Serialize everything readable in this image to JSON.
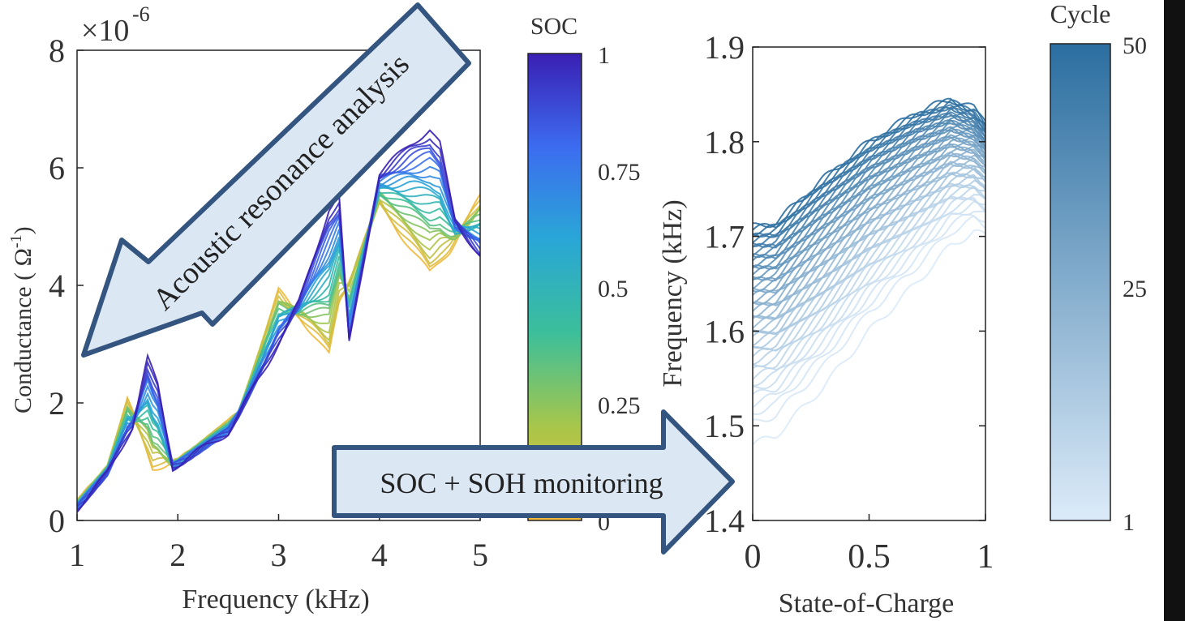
{
  "chart_data": [
    {
      "type": "line",
      "xlabel": "Frequency (kHz)",
      "ylabel": "Conductance ( Ω",
      "ylabel_sup": "-1",
      "ylabel_close": ")",
      "y_multiplier_base": "×10",
      "y_multiplier_exp": "-6",
      "xlim": [
        1,
        5
      ],
      "ylim": [
        0,
        8
      ],
      "xticks": [
        "1",
        "2",
        "3",
        "4",
        "5"
      ],
      "yticks": [
        "0",
        "2",
        "4",
        "6",
        "8"
      ],
      "grid": false,
      "series_description": "family of conductance spectra, one per SOC level (0 to 1)",
      "sample_series": {
        "soc_1": {
          "x": [
            1.0,
            1.3,
            1.55,
            1.7,
            1.8,
            1.95,
            2.5,
            2.9,
            3.2,
            3.5,
            3.6,
            3.7,
            4.0,
            4.3,
            4.5,
            4.6,
            4.75,
            5.0
          ],
          "y": [
            0.2,
            0.8,
            1.6,
            2.75,
            2.3,
            0.9,
            1.5,
            2.7,
            3.7,
            5.3,
            5.5,
            3.0,
            5.9,
            6.4,
            6.65,
            6.4,
            5.1,
            4.5
          ]
        },
        "soc_0": {
          "x": [
            1.0,
            1.3,
            1.5,
            1.6,
            1.75,
            2.0,
            2.6,
            3.0,
            3.2,
            3.5,
            3.6,
            4.0,
            4.2,
            4.5,
            4.7,
            5.0
          ],
          "y": [
            0.3,
            0.9,
            2.05,
            1.6,
            0.9,
            1.0,
            1.8,
            3.9,
            3.5,
            2.8,
            3.7,
            5.4,
            4.9,
            4.2,
            4.6,
            5.5
          ]
        }
      },
      "colorbar": {
        "title": "SOC",
        "ticks": [
          "1",
          "0.75",
          "0.5",
          "0.25",
          "0"
        ],
        "range": [
          0,
          1
        ],
        "colors": [
          "#f0b93c",
          "#a8c64a",
          "#3cbf9a",
          "#29a7d6",
          "#3c6cf0",
          "#3a1fb3"
        ]
      }
    },
    {
      "type": "line",
      "xlabel": "State-of-Charge",
      "ylabel": "Frequency (kHz)",
      "xlim": [
        0,
        1
      ],
      "ylim": [
        1.4,
        1.9
      ],
      "xticks": [
        "0",
        "0.5",
        "1"
      ],
      "yticks": [
        "1.4",
        "1.5",
        "1.6",
        "1.7",
        "1.8",
        "1.9"
      ],
      "grid": false,
      "series_description": "resonance frequency vs SOC, one line per cycle (1 to 50)",
      "sample_series": {
        "cycle_50": {
          "x": [
            0,
            0.1,
            0.3,
            0.5,
            0.7,
            0.85,
            0.95,
            1.0
          ],
          "y": [
            1.71,
            1.715,
            1.76,
            1.8,
            1.83,
            1.845,
            1.835,
            1.82
          ]
        },
        "cycle_1": {
          "x": [
            0,
            0.1,
            0.3,
            0.5,
            0.7,
            0.85,
            0.95,
            1.0
          ],
          "y": [
            1.48,
            1.49,
            1.54,
            1.6,
            1.65,
            1.69,
            1.705,
            1.7
          ]
        }
      },
      "colorbar": {
        "title": "Cycle",
        "ticks": [
          "50",
          "25",
          "1"
        ],
        "range": [
          1,
          50
        ],
        "colors": [
          "#dcebf9",
          "#2b6ea0"
        ]
      }
    }
  ],
  "annotations": {
    "arrow_1": "Acoustic resonance analysis",
    "arrow_2": "SOC + SOH monitoring"
  }
}
